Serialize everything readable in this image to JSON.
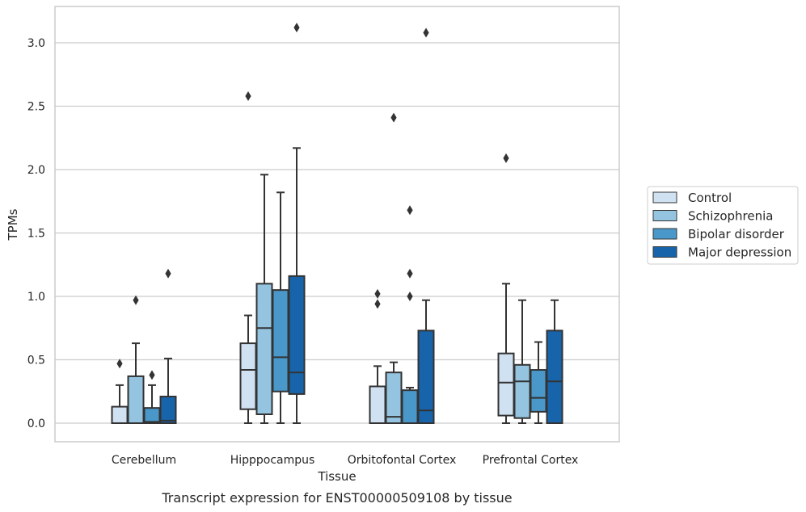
{
  "caption": "Transcript expression for ENST00000509108 by tissue",
  "chart_data": {
    "type": "boxplot",
    "xlabel": "Tissue",
    "ylabel": "TPMs",
    "ylim": [
      -0.15,
      3.28
    ],
    "yticks": [
      0.0,
      0.5,
      1.0,
      1.5,
      2.0,
      2.5,
      3.0
    ],
    "ytick_labels": [
      "0.0",
      "0.5",
      "1.0",
      "1.5",
      "2.0",
      "2.5",
      "3.0"
    ],
    "grid": "horizontal",
    "legend_position": "right",
    "categories": [
      "Cerebellum",
      "Hipppocampus",
      "Orbitofontal Cortex",
      "Prefrontal Cortex"
    ],
    "series": [
      {
        "name": "Control",
        "color": "#d0e1f2",
        "boxes": [
          {
            "whislo": 0.0,
            "q1": 0.0,
            "med": 0.0,
            "q3": 0.13,
            "whishi": 0.3,
            "fliers": [
              0.47
            ]
          },
          {
            "whislo": 0.0,
            "q1": 0.11,
            "med": 0.42,
            "q3": 0.63,
            "whishi": 0.85,
            "fliers": [
              2.58
            ]
          },
          {
            "whislo": 0.0,
            "q1": 0.0,
            "med": 0.0,
            "q3": 0.29,
            "whishi": 0.45,
            "fliers": [
              0.94,
              1.02
            ]
          },
          {
            "whislo": 0.0,
            "q1": 0.06,
            "med": 0.32,
            "q3": 0.55,
            "whishi": 1.1,
            "fliers": [
              2.09
            ]
          }
        ]
      },
      {
        "name": "Schizophrenia",
        "color": "#94c4df",
        "boxes": [
          {
            "whislo": 0.0,
            "q1": 0.0,
            "med": 0.0,
            "q3": 0.37,
            "whishi": 0.63,
            "fliers": [
              0.97
            ]
          },
          {
            "whislo": 0.0,
            "q1": 0.07,
            "med": 0.75,
            "q3": 1.1,
            "whishi": 1.96,
            "fliers": []
          },
          {
            "whislo": 0.0,
            "q1": 0.0,
            "med": 0.05,
            "q3": 0.4,
            "whishi": 0.48,
            "fliers": [
              2.41
            ]
          },
          {
            "whislo": 0.0,
            "q1": 0.04,
            "med": 0.33,
            "q3": 0.46,
            "whishi": 0.97,
            "fliers": []
          }
        ]
      },
      {
        "name": "Bipolar disorder",
        "color": "#4a98c9",
        "boxes": [
          {
            "whislo": 0.0,
            "q1": 0.0,
            "med": 0.01,
            "q3": 0.12,
            "whishi": 0.3,
            "fliers": [
              0.38
            ]
          },
          {
            "whislo": 0.0,
            "q1": 0.25,
            "med": 0.52,
            "q3": 1.05,
            "whishi": 1.82,
            "fliers": []
          },
          {
            "whislo": 0.0,
            "q1": 0.0,
            "med": 0.0,
            "q3": 0.26,
            "whishi": 0.28,
            "fliers": [
              1.0,
              1.18,
              1.68
            ]
          },
          {
            "whislo": 0.0,
            "q1": 0.09,
            "med": 0.2,
            "q3": 0.42,
            "whishi": 0.64,
            "fliers": []
          }
        ]
      },
      {
        "name": "Major depression",
        "color": "#1764ab",
        "boxes": [
          {
            "whislo": 0.0,
            "q1": 0.0,
            "med": 0.02,
            "q3": 0.21,
            "whishi": 0.51,
            "fliers": [
              1.18
            ]
          },
          {
            "whislo": 0.0,
            "q1": 0.23,
            "med": 0.4,
            "q3": 1.16,
            "whishi": 2.17,
            "fliers": [
              3.12
            ]
          },
          {
            "whislo": 0.0,
            "q1": 0.0,
            "med": 0.1,
            "q3": 0.73,
            "whishi": 0.97,
            "fliers": [
              3.08
            ]
          },
          {
            "whislo": 0.0,
            "q1": 0.0,
            "med": 0.33,
            "q3": 0.73,
            "whishi": 0.97,
            "fliers": []
          }
        ]
      }
    ]
  }
}
